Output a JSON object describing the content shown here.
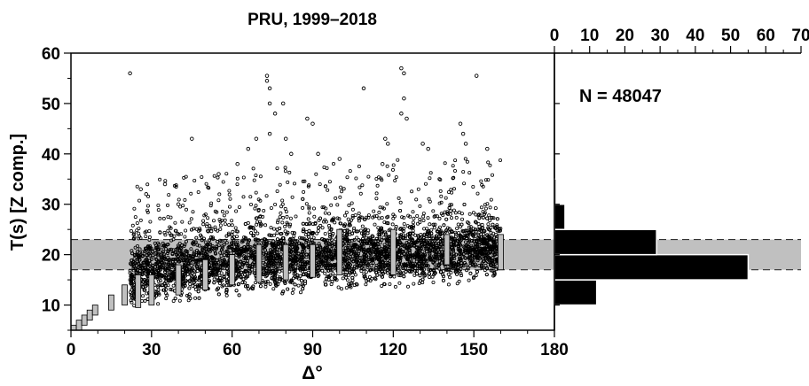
{
  "chart_data": [
    {
      "type": "scatter",
      "title": "PRU, 1999–2018",
      "xlabel": "Δ°",
      "ylabel": "T(s) [Z comp.]",
      "xlim": [
        0,
        180
      ],
      "ylim": [
        5,
        60
      ],
      "xticks": [
        "0",
        "30",
        "60",
        "90",
        "120",
        "150",
        "180"
      ],
      "yticks": [
        "10",
        "20",
        "30",
        "40",
        "50",
        "60"
      ],
      "grid": false,
      "band": {
        "y_min": 17,
        "y_max": 23,
        "color": "#c0c0c0"
      },
      "colors": {
        "points": "#000000",
        "boxes": "#c0c0c0",
        "background": "#ffffff"
      },
      "cloud": [
        {
          "x": 22,
          "y_lo": 10,
          "y_hi": 23
        },
        {
          "x": 30,
          "y_lo": 10.5,
          "y_hi": 23.5
        },
        {
          "x": 40,
          "y_lo": 11,
          "y_hi": 24
        },
        {
          "x": 50,
          "y_lo": 11.5,
          "y_hi": 24.5
        },
        {
          "x": 60,
          "y_lo": 12,
          "y_hi": 25
        },
        {
          "x": 70,
          "y_lo": 12.5,
          "y_hi": 25.5
        },
        {
          "x": 80,
          "y_lo": 12.5,
          "y_hi": 26
        },
        {
          "x": 90,
          "y_lo": 13,
          "y_hi": 26
        },
        {
          "x": 100,
          "y_lo": 13.5,
          "y_hi": 27
        },
        {
          "x": 110,
          "y_lo": 14,
          "y_hi": 27
        },
        {
          "x": 120,
          "y_lo": 14,
          "y_hi": 27.5
        },
        {
          "x": 130,
          "y_lo": 14,
          "y_hi": 27
        },
        {
          "x": 140,
          "y_lo": 14.5,
          "y_hi": 28
        },
        {
          "x": 150,
          "y_lo": 15,
          "y_hi": 28
        },
        {
          "x": 160,
          "y_lo": 15,
          "y_hi": 27
        }
      ],
      "outliers": [
        {
          "x": 22,
          "y": 56
        },
        {
          "x": 45,
          "y": 43
        },
        {
          "x": 55,
          "y": 36
        },
        {
          "x": 62,
          "y": 38
        },
        {
          "x": 66,
          "y": 41
        },
        {
          "x": 69,
          "y": 43
        },
        {
          "x": 73,
          "y": 55.5
        },
        {
          "x": 73,
          "y": 54.5
        },
        {
          "x": 74,
          "y": 53
        },
        {
          "x": 74,
          "y": 50
        },
        {
          "x": 74,
          "y": 44
        },
        {
          "x": 76,
          "y": 48
        },
        {
          "x": 79,
          "y": 50
        },
        {
          "x": 80,
          "y": 43
        },
        {
          "x": 82,
          "y": 40
        },
        {
          "x": 88,
          "y": 47
        },
        {
          "x": 90,
          "y": 46
        },
        {
          "x": 92,
          "y": 40
        },
        {
          "x": 100,
          "y": 39
        },
        {
          "x": 109,
          "y": 53
        },
        {
          "x": 116,
          "y": 38
        },
        {
          "x": 117,
          "y": 43
        },
        {
          "x": 118,
          "y": 42
        },
        {
          "x": 123,
          "y": 57
        },
        {
          "x": 124,
          "y": 56
        },
        {
          "x": 124,
          "y": 51
        },
        {
          "x": 123,
          "y": 48
        },
        {
          "x": 125,
          "y": 47
        },
        {
          "x": 131,
          "y": 42
        },
        {
          "x": 133,
          "y": 41
        },
        {
          "x": 145,
          "y": 46
        },
        {
          "x": 146,
          "y": 44
        },
        {
          "x": 147,
          "y": 42
        },
        {
          "x": 151,
          "y": 55.5
        },
        {
          "x": 155,
          "y": 41
        },
        {
          "x": 26,
          "y": 33
        },
        {
          "x": 28,
          "y": 32
        },
        {
          "x": 35,
          "y": 34
        },
        {
          "x": 40,
          "y": 30
        }
      ],
      "boxes": [
        {
          "x": 1,
          "y_min": 5,
          "y_max": 6
        },
        {
          "x": 3,
          "y_min": 5,
          "y_max": 7
        },
        {
          "x": 5,
          "y_min": 6,
          "y_max": 8
        },
        {
          "x": 7,
          "y_min": 7,
          "y_max": 9
        },
        {
          "x": 9,
          "y_min": 8,
          "y_max": 10
        },
        {
          "x": 15,
          "y_min": 9,
          "y_max": 12
        },
        {
          "x": 20,
          "y_min": 10,
          "y_max": 14
        },
        {
          "x": 25,
          "y_min": 9.5,
          "y_max": 16
        },
        {
          "x": 30,
          "y_min": 10,
          "y_max": 16
        },
        {
          "x": 40,
          "y_min": 12,
          "y_max": 18
        },
        {
          "x": 50,
          "y_min": 13,
          "y_max": 19
        },
        {
          "x": 60,
          "y_min": 14,
          "y_max": 20
        },
        {
          "x": 70,
          "y_min": 14.5,
          "y_max": 22
        },
        {
          "x": 80,
          "y_min": 15,
          "y_max": 22
        },
        {
          "x": 90,
          "y_min": 15.5,
          "y_max": 22
        },
        {
          "x": 100,
          "y_min": 16,
          "y_max": 25
        },
        {
          "x": 120,
          "y_min": 16,
          "y_max": 25
        },
        {
          "x": 140,
          "y_min": 18,
          "y_max": 24
        },
        {
          "x": 160,
          "y_min": 17,
          "y_max": 24
        }
      ]
    },
    {
      "type": "bar",
      "orientation": "horizontal",
      "annotation": "N = 48047",
      "xlim": [
        0,
        70
      ],
      "xticks": [
        "0",
        "10",
        "20",
        "30",
        "40",
        "50",
        "60",
        "70"
      ],
      "tick_position": "top",
      "bar_color": "#000000",
      "bins": [
        {
          "y_min": 0,
          "y_max": 5,
          "value": 0
        },
        {
          "y_min": 5,
          "y_max": 10,
          "value": 0
        },
        {
          "y_min": 10,
          "y_max": 15,
          "value": 12
        },
        {
          "y_min": 15,
          "y_max": 20,
          "value": 55
        },
        {
          "y_min": 20,
          "y_max": 25,
          "value": 29
        },
        {
          "y_min": 25,
          "y_max": 30,
          "value": 3
        },
        {
          "y_min": 30,
          "y_max": 35,
          "value": 0.5
        },
        {
          "y_min": 35,
          "y_max": 40,
          "value": 0
        }
      ]
    }
  ]
}
